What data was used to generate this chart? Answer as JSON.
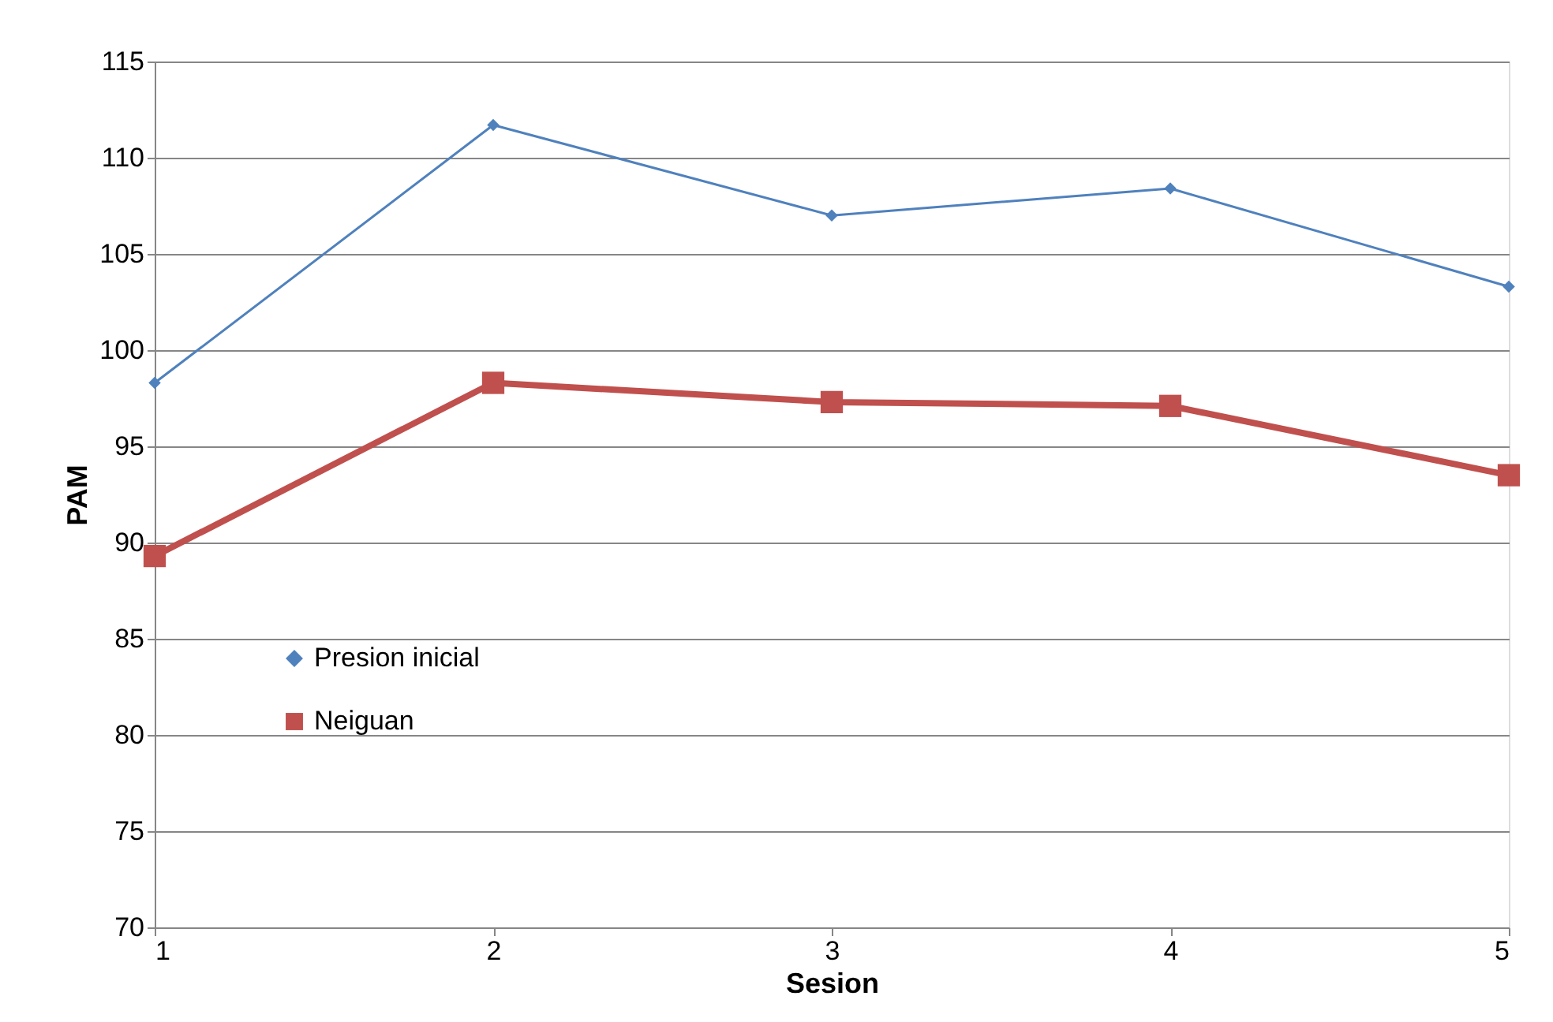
{
  "chart_data": {
    "type": "line",
    "xlabel": "Sesion",
    "ylabel": "PAM",
    "x": [
      1,
      2,
      3,
      4,
      5
    ],
    "xlim": [
      1,
      5
    ],
    "xticks": [
      1,
      2,
      3,
      4,
      5
    ],
    "ylim": [
      70,
      115
    ],
    "yticks": [
      70,
      75,
      80,
      85,
      90,
      95,
      100,
      105,
      110,
      115
    ],
    "grid": "y",
    "legend": "bottom left",
    "series": [
      {
        "name": "Presion inicial",
        "color": "#4f81bd",
        "marker": "diamond",
        "values": [
          98.3,
          111.7,
          107.0,
          108.4,
          103.3
        ]
      },
      {
        "name": "Neiguan",
        "color": "#c0504d",
        "marker": "square",
        "values": [
          89.3,
          98.3,
          97.3,
          97.1,
          93.5
        ]
      }
    ]
  }
}
